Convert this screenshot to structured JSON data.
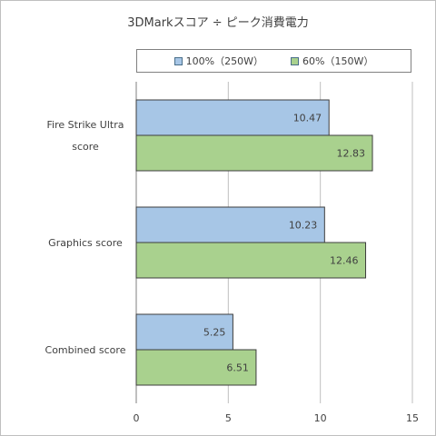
{
  "chart_data": {
    "type": "bar",
    "orientation": "horizontal",
    "title": "3DMarkスコア ÷ ピーク消費電力",
    "categories": [
      [
        "Fire Strike Ultra",
        "score"
      ],
      [
        "Graphics score"
      ],
      [
        "Combined score"
      ]
    ],
    "series": [
      {
        "name": "100%（250W）",
        "values": [
          10.47,
          10.23,
          5.25
        ],
        "color": "#a7c6e6"
      },
      {
        "name": "60%（150W）",
        "values": [
          12.83,
          12.46,
          6.51
        ],
        "color": "#a9d18e"
      }
    ],
    "xlim": [
      0,
      15
    ],
    "xticks": [
      "0",
      "5",
      "10",
      "15"
    ],
    "grid": true,
    "legend_position": "top"
  },
  "colors": {
    "bar_outline": "#3d3d3d",
    "grid": "#bfbfbf",
    "axis": "#7f7f7f"
  }
}
